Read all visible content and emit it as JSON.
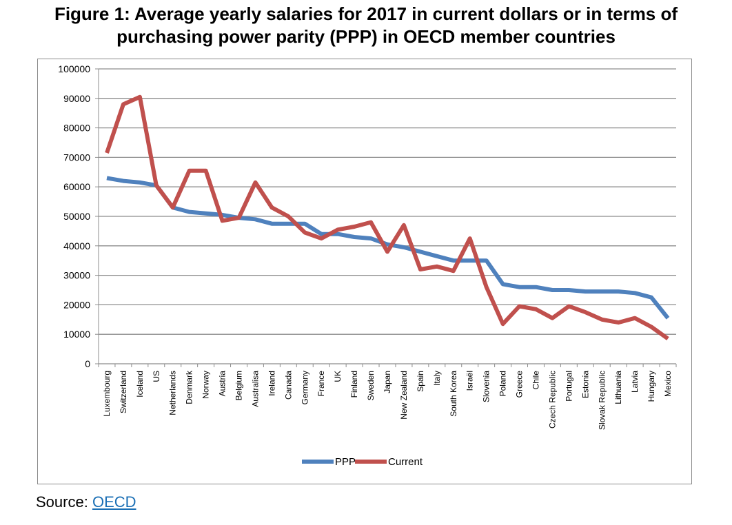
{
  "title": {
    "line1": "Figure 1: Average yearly salaries for 2017 in current dollars or in terms of",
    "line2": "purchasing power parity (PPP) in OECD member countries"
  },
  "source": {
    "label": "Source:",
    "link_text": "OECD"
  },
  "chart_data": {
    "type": "line",
    "title": "Figure 1: Average yearly salaries for 2017 in current dollars or in terms of purchasing power parity (PPP) in OECD member countries",
    "xlabel": "",
    "ylabel": "",
    "ylim": [
      0,
      100000
    ],
    "yticks": [
      0,
      10000,
      20000,
      30000,
      40000,
      50000,
      60000,
      70000,
      80000,
      90000,
      100000
    ],
    "grid": "horizontal",
    "legend_position": "bottom",
    "categories": [
      "Luxembourg",
      "Switzerland",
      "Iceland",
      "US",
      "Netherlands",
      "Denmark",
      "Norway",
      "Austria",
      "Belgium",
      "Australisa",
      "Ireland",
      "Canada",
      "Germany",
      "France",
      "UK",
      "Finland",
      "Sweden",
      "Japan",
      "New Zealand",
      "Spain",
      "Italy",
      "South Korea",
      "Israël",
      "Slovenia",
      "Poland",
      "Greece",
      "Chile",
      "Czech Republic",
      "Portugal",
      "Estonia",
      "Slovak Republic",
      "Lithuania",
      "Latvia",
      "Hungary",
      "Mexico"
    ],
    "series": [
      {
        "name": "PPP",
        "color": "#4f81bd",
        "values": [
          63000,
          62000,
          61500,
          60500,
          53000,
          51500,
          51000,
          50500,
          49500,
          49000,
          47500,
          47500,
          47500,
          44000,
          44000,
          43000,
          42500,
          40500,
          39500,
          38000,
          36500,
          35000,
          35000,
          35000,
          27000,
          26000,
          26000,
          25000,
          25000,
          24500,
          24500,
          24500,
          24000,
          22500,
          15500
        ]
      },
      {
        "name": "Current",
        "color": "#c0504d",
        "values": [
          71500,
          88000,
          90500,
          60500,
          53000,
          65500,
          65500,
          48500,
          49500,
          61500,
          53000,
          50000,
          44500,
          42500,
          45500,
          46500,
          48000,
          38000,
          47000,
          32000,
          33000,
          31500,
          42500,
          26000,
          13500,
          19500,
          18500,
          15500,
          19500,
          17500,
          15000,
          14000,
          15500,
          12500,
          8500
        ]
      }
    ]
  }
}
